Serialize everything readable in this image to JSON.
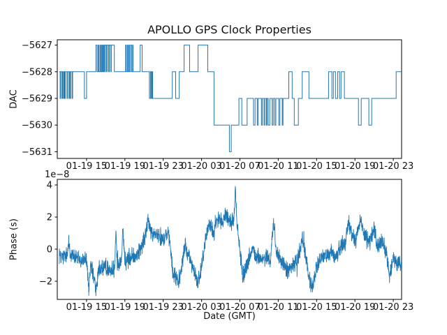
{
  "figure": {
    "title": "APOLLO GPS Clock Properties",
    "xlabel": "Date (GMT)",
    "offset_text": "1e−8",
    "line_color": "#1f77b4",
    "axis_color": "#000000",
    "text_color": "#111111",
    "background": "#ffffff"
  },
  "x_axis": {
    "xlim_hours": [
      -0.05,
      35.87
    ],
    "x_encoding": "hours after 01-19 12:00 GMT",
    "ticks": [
      {
        "h": 3,
        "label": "01-19 15"
      },
      {
        "h": 7,
        "label": "01-19 19"
      },
      {
        "h": 11,
        "label": "01-19 23"
      },
      {
        "h": 15,
        "label": "01-20 03"
      },
      {
        "h": 19,
        "label": "01-20 07"
      },
      {
        "h": 23,
        "label": "01-20 11"
      },
      {
        "h": 27,
        "label": "01-20 15"
      },
      {
        "h": 31,
        "label": "01-20 19"
      },
      {
        "h": 35,
        "label": "01-20 23"
      }
    ]
  },
  "chart_data": [
    {
      "type": "line",
      "subtype": "step",
      "title": "APOLLO GPS Clock Properties",
      "ylabel": "DAC",
      "ylim": [
        -5631.25,
        -5626.8
      ],
      "yticks": [
        {
          "v": -5627,
          "label": "−5627"
        },
        {
          "v": -5628,
          "label": "−5628"
        },
        {
          "v": -5629,
          "label": "−5629"
        },
        {
          "v": -5630,
          "label": "−5630"
        },
        {
          "v": -5631,
          "label": "−5631"
        }
      ],
      "grid": false,
      "legend": "none",
      "seed": 99,
      "segments": [
        {
          "h0": 0.16,
          "h1": 1.55,
          "osc": [
            -5628,
            -5629
          ],
          "bd": [
            0.05,
            0.2
          ],
          "ad": [
            0.03,
            0.1
          ]
        },
        {
          "h0": 1.55,
          "h1": 2.78,
          "level": -5628
        },
        {
          "h0": 2.78,
          "h1": 3.0,
          "level": -5629
        },
        {
          "h0": 3.0,
          "h1": 3.87,
          "level": -5628
        },
        {
          "h0": 3.87,
          "h1": 4.96,
          "osc": [
            -5628,
            -5627
          ],
          "bd": [
            0.04,
            0.12
          ],
          "ad": [
            0.04,
            0.14
          ]
        },
        {
          "h0": 4.96,
          "h1": 5.69,
          "osc": [
            -5627,
            -5628
          ],
          "bd": [
            0.1,
            0.25
          ],
          "ad": [
            0.03,
            0.08
          ]
        },
        {
          "h0": 5.69,
          "h1": 5.9,
          "level": -5627
        },
        {
          "h0": 5.9,
          "h1": 7.0,
          "level": -5628
        },
        {
          "h0": 7.0,
          "h1": 7.87,
          "osc": [
            -5628,
            -5627
          ],
          "bd": [
            0.04,
            0.12
          ],
          "ad": [
            0.04,
            0.12
          ]
        },
        {
          "h0": 7.87,
          "h1": 8.6,
          "level": -5628
        },
        {
          "h0": 8.6,
          "h1": 8.8,
          "level": -5627
        },
        {
          "h0": 8.8,
          "h1": 9.45,
          "level": -5628
        },
        {
          "h0": 9.45,
          "h1": 9.9,
          "osc": [
            -5628,
            -5629
          ],
          "bd": [
            0.06,
            0.12
          ],
          "ad": [
            0.06,
            0.12
          ]
        },
        {
          "h0": 9.9,
          "h1": 11.95,
          "level": -5629
        },
        {
          "h0": 11.95,
          "h1": 12.3,
          "level": -5628
        },
        {
          "h0": 12.3,
          "h1": 12.67,
          "level": -5629
        },
        {
          "h0": 12.67,
          "h1": 13.18,
          "level": -5628
        },
        {
          "h0": 13.18,
          "h1": 13.76,
          "level": -5627
        },
        {
          "h0": 13.76,
          "h1": 14.64,
          "level": -5628
        },
        {
          "h0": 14.64,
          "h1": 15.65,
          "level": -5627
        },
        {
          "h0": 15.65,
          "h1": 16.3,
          "level": -5628
        },
        {
          "h0": 16.3,
          "h1": 17.9,
          "level": -5630
        },
        {
          "h0": 17.9,
          "h1": 18.1,
          "level": -5631
        },
        {
          "h0": 18.1,
          "h1": 18.9,
          "level": -5630
        },
        {
          "h0": 18.9,
          "h1": 19.2,
          "level": -5629
        },
        {
          "h0": 19.2,
          "h1": 19.75,
          "level": -5630
        },
        {
          "h0": 19.75,
          "h1": 20.1,
          "level": -5629
        },
        {
          "h0": 20.1,
          "h1": 23.5,
          "osc": [
            -5629,
            -5630
          ],
          "bd": [
            0.1,
            0.35
          ],
          "ad": [
            0.05,
            0.18
          ]
        },
        {
          "h0": 23.5,
          "h1": 24.1,
          "level": -5629
        },
        {
          "h0": 24.1,
          "h1": 24.45,
          "level": -5628
        },
        {
          "h0": 24.45,
          "h1": 24.67,
          "level": -5629
        },
        {
          "h0": 24.67,
          "h1": 25.1,
          "level": -5630
        },
        {
          "h0": 25.1,
          "h1": 25.5,
          "level": -5629
        },
        {
          "h0": 25.5,
          "h1": 26.2,
          "level": -5628
        },
        {
          "h0": 26.2,
          "h1": 28.25,
          "level": -5629
        },
        {
          "h0": 28.25,
          "h1": 28.6,
          "level": -5628
        },
        {
          "h0": 28.6,
          "h1": 28.75,
          "level": -5629
        },
        {
          "h0": 28.75,
          "h1": 28.97,
          "level": -5628
        },
        {
          "h0": 28.97,
          "h1": 29.2,
          "level": -5629
        },
        {
          "h0": 29.2,
          "h1": 29.4,
          "level": -5628
        },
        {
          "h0": 29.4,
          "h1": 29.55,
          "level": -5629
        },
        {
          "h0": 29.55,
          "h1": 29.9,
          "level": -5628
        },
        {
          "h0": 29.9,
          "h1": 31.37,
          "level": -5629
        },
        {
          "h0": 31.37,
          "h1": 31.66,
          "level": -5630
        },
        {
          "h0": 31.66,
          "h1": 32.45,
          "level": -5629
        },
        {
          "h0": 32.45,
          "h1": 32.75,
          "level": -5630
        },
        {
          "h0": 32.75,
          "h1": 35.3,
          "level": -5629
        },
        {
          "h0": 35.3,
          "h1": 35.86,
          "level": -5628
        }
      ]
    },
    {
      "type": "line",
      "subtype": "noisy",
      "ylabel": "Phase (s)",
      "y_offset_factor": "1e−8",
      "ylim": [
        -3.13,
        4.35
      ],
      "yticks": [
        {
          "v": 4,
          "label": "4"
        },
        {
          "v": 2,
          "label": "2"
        },
        {
          "v": 0,
          "label": "0"
        },
        {
          "v": -2,
          "label": "−2"
        }
      ],
      "grid": false,
      "legend": "none",
      "noise_amplitude": 0.65,
      "sample_step_hours": 0.018,
      "seed": 12345,
      "trend": [
        [
          0.16,
          -0.3
        ],
        [
          0.6,
          -0.5
        ],
        [
          1.0,
          -0.45
        ],
        [
          1.15,
          0.8
        ],
        [
          1.3,
          -0.4
        ],
        [
          2.0,
          -0.5
        ],
        [
          2.5,
          -0.75
        ],
        [
          3.0,
          -0.6
        ],
        [
          3.25,
          -2.5
        ],
        [
          3.45,
          -1.1
        ],
        [
          3.7,
          -1.6
        ],
        [
          4.0,
          -2.6
        ],
        [
          4.3,
          -1.2
        ],
        [
          5.0,
          -1.1
        ],
        [
          5.5,
          -1.4
        ],
        [
          5.95,
          -1.0
        ],
        [
          6.05,
          1.3
        ],
        [
          6.2,
          -0.9
        ],
        [
          6.6,
          -0.8
        ],
        [
          6.8,
          1.4
        ],
        [
          7.0,
          -0.8
        ],
        [
          7.5,
          -0.6
        ],
        [
          8.0,
          -0.4
        ],
        [
          8.6,
          -0.1
        ],
        [
          9.0,
          0.5
        ],
        [
          9.45,
          1.9
        ],
        [
          9.8,
          0.8
        ],
        [
          10.2,
          1.0
        ],
        [
          10.6,
          0.9
        ],
        [
          11.0,
          0.6
        ],
        [
          11.4,
          1.0
        ],
        [
          11.7,
          0.5
        ],
        [
          12.0,
          -1.6
        ],
        [
          12.4,
          -1.8
        ],
        [
          12.6,
          -2.0
        ],
        [
          12.9,
          -1.1
        ],
        [
          13.3,
          0.3
        ],
        [
          13.7,
          -0.5
        ],
        [
          14.2,
          -1.3
        ],
        [
          14.6,
          -2.2
        ],
        [
          15.0,
          -1.1
        ],
        [
          15.4,
          0.7
        ],
        [
          15.8,
          1.6
        ],
        [
          16.2,
          1.3
        ],
        [
          16.8,
          2.0
        ],
        [
          17.2,
          1.5
        ],
        [
          17.5,
          2.3
        ],
        [
          17.8,
          1.8
        ],
        [
          18.1,
          1.6
        ],
        [
          18.4,
          2.0
        ],
        [
          18.52,
          3.9
        ],
        [
          18.7,
          1.6
        ],
        [
          18.9,
          0.5
        ],
        [
          19.3,
          -1.7
        ],
        [
          19.7,
          -1.0
        ],
        [
          20.3,
          -0.1
        ],
        [
          20.8,
          -0.5
        ],
        [
          21.3,
          -0.6
        ],
        [
          21.8,
          -0.4
        ],
        [
          22.2,
          -0.8
        ],
        [
          22.5,
          1.9
        ],
        [
          22.8,
          -0.3
        ],
        [
          23.2,
          -0.7
        ],
        [
          23.6,
          -0.9
        ],
        [
          24.0,
          -1.4
        ],
        [
          24.5,
          -1.0
        ],
        [
          25.0,
          -0.8
        ],
        [
          25.5,
          0.7
        ],
        [
          25.9,
          -0.5
        ],
        [
          26.3,
          -2.1
        ],
        [
          26.6,
          -2.4
        ],
        [
          27.0,
          -1.1
        ],
        [
          27.5,
          -0.5
        ],
        [
          28.0,
          -0.4
        ],
        [
          28.5,
          -0.1
        ],
        [
          29.0,
          -0.5
        ],
        [
          29.5,
          0.2
        ],
        [
          30.0,
          0.4
        ],
        [
          30.3,
          1.7
        ],
        [
          30.7,
          1.0
        ],
        [
          31.1,
          0.6
        ],
        [
          31.6,
          1.9
        ],
        [
          32.0,
          0.8
        ],
        [
          32.5,
          0.4
        ],
        [
          33.0,
          1.3
        ],
        [
          33.4,
          0.1
        ],
        [
          33.8,
          0.6
        ],
        [
          34.3,
          -0.3
        ],
        [
          34.6,
          -1.7
        ],
        [
          35.0,
          -0.6
        ],
        [
          35.5,
          -0.8
        ],
        [
          35.87,
          -0.9
        ]
      ]
    }
  ]
}
